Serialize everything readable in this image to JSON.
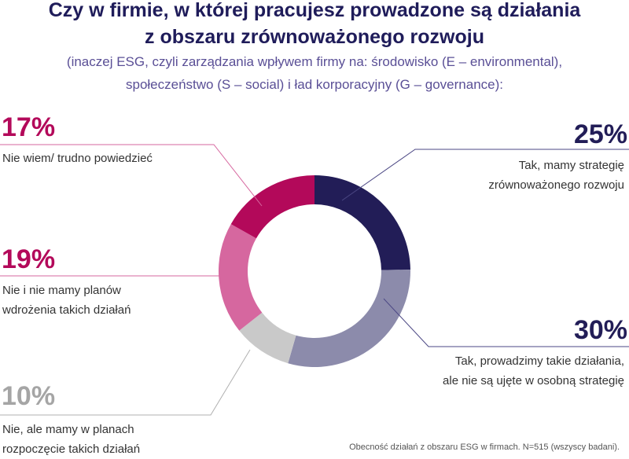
{
  "header": {
    "title_line1": "Czy w firmie, w której pracujesz prowadzone są działania",
    "title_line2": "z obszaru zrównoważonego rozwoju",
    "subtitle_line1": "(inaczej ESG, czyli zarządzania wpływem firmy na: środowisko (E – environmental),",
    "subtitle_line2": "społeczeństwo (S – social) i ład korporacyjny (G – governance):"
  },
  "chart_data": {
    "type": "pie",
    "donut": true,
    "slices": [
      {
        "value": 25,
        "label_pct": "25%",
        "label_line1": "Tak, mamy strategię",
        "label_line2": "zrównoważonego rozwoju",
        "color": "#221d57"
      },
      {
        "value": 30,
        "label_pct": "30%",
        "label_line1": "Tak, prowadzimy takie działania,",
        "label_line2": "ale nie są ujęte w osobną strategię",
        "color": "#8c8bab"
      },
      {
        "value": 10,
        "label_pct": "10%",
        "label_line1": "Nie, ale mamy w planach",
        "label_line2": "rozpoczęcie takich działań",
        "color": "#c9c9c9"
      },
      {
        "value": 19,
        "label_pct": "19%",
        "label_line1": "Nie i nie mamy planów",
        "label_line2": "wdrożenia takich działań",
        "color": "#d6679f"
      },
      {
        "value": 17,
        "label_pct": "17%",
        "label_line1": "Nie wiem/ trudno powiedzieć",
        "label_line2": "",
        "color": "#b3095a"
      }
    ]
  },
  "colors": {
    "title": "#1f1c5a",
    "subtitle": "#5a4f96",
    "pct_25": "#221d57",
    "pct_30": "#221d57",
    "pct_10": "#a5a5a5",
    "pct_19": "#b3095a",
    "pct_17": "#b3095a"
  },
  "footer": {
    "source": "Obecność działań z obszaru ESG w firmach. N=515 (wszyscy badani)."
  }
}
